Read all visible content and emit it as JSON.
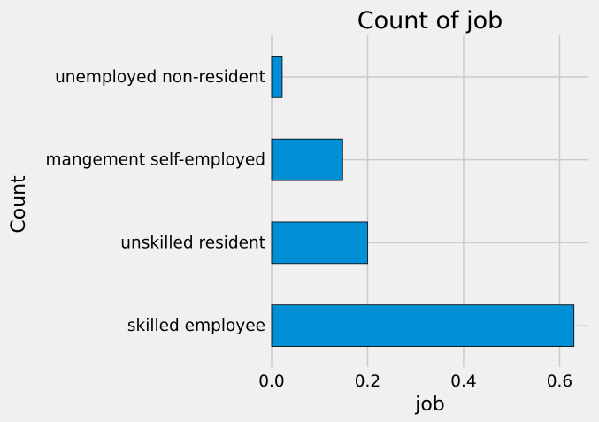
{
  "chart_data": {
    "type": "bar",
    "orientation": "horizontal",
    "title": "Count of job",
    "xlabel": "job",
    "ylabel": "Count",
    "categories": [
      "skilled employee",
      "unskilled resident",
      "mangement self-employed",
      "unemployed non-resident"
    ],
    "values": [
      0.63,
      0.2,
      0.148,
      0.022
    ],
    "xlim": [
      0,
      0.66
    ],
    "xticks": [
      0.0,
      0.2,
      0.4,
      0.6
    ],
    "xtick_labels": [
      "0.0",
      "0.2",
      "0.4",
      "0.6"
    ],
    "grid": true,
    "bar_color": "#008fd5",
    "edge_color": "#000000",
    "background": "#f0f0f0"
  }
}
